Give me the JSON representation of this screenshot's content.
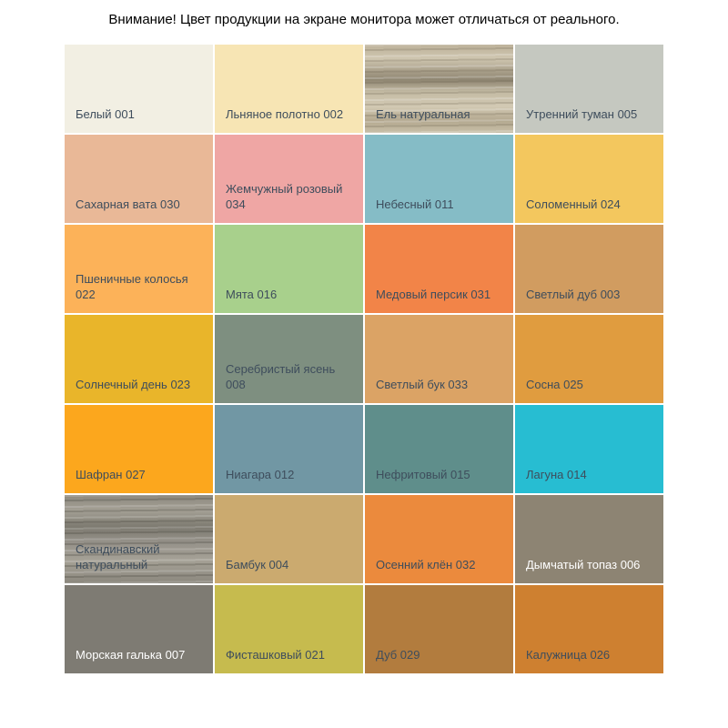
{
  "title": "Внимание! Цвет продукции на экране монитора может отличаться от реального.",
  "label_text_color": "#3e4d5c",
  "swatches": [
    {
      "label": "Белый 001",
      "color": "#f2efe3"
    },
    {
      "label": "Льняное полотно 002",
      "color": "#f7e5b4"
    },
    {
      "label": "Ель натуральная",
      "color": "#c9bfa8",
      "texture": "wood-spruce"
    },
    {
      "label": "Утренний туман 005",
      "color": "#c5c8c0"
    },
    {
      "label": "Сахарная вата 030",
      "color": "#e9b897"
    },
    {
      "label": "Жемчужный розовый 034",
      "color": "#efa6a4"
    },
    {
      "label": "Небесный 011",
      "color": "#85bcc6"
    },
    {
      "label": "Соломенный 024",
      "color": "#f3c75e"
    },
    {
      "label": "Пшеничные колосья 022",
      "color": "#fcb259"
    },
    {
      "label": "Мята 016",
      "color": "#a8d08c"
    },
    {
      "label": "Медовый персик 031",
      "color": "#f28448"
    },
    {
      "label": "Светлый дуб 003",
      "color": "#d19c60"
    },
    {
      "label": "Солнечный день 023",
      "color": "#e9b52a"
    },
    {
      "label": "Серебристый ясень 008",
      "color": "#7e8f80"
    },
    {
      "label": "Светлый бук 033",
      "color": "#dba365"
    },
    {
      "label": "Сосна 025",
      "color": "#e09c3f"
    },
    {
      "label": "Шафран 027",
      "color": "#fca71d"
    },
    {
      "label": "Ниагара 012",
      "color": "#7197a4"
    },
    {
      "label": "Нефритовый 015",
      "color": "#5f8e8b"
    },
    {
      "label": "Лагуна 014",
      "color": "#27bdd2"
    },
    {
      "label": "Скандинавский натуральный",
      "color": "#9b978d",
      "texture": "wood-gray"
    },
    {
      "label": "Бамбук 004",
      "color": "#cbaa6f"
    },
    {
      "label": "Осенний клён 032",
      "color": "#eb8a3d"
    },
    {
      "label": "Дымчатый топаз 006",
      "color": "#8d8473",
      "text_color": "#ffffff"
    },
    {
      "label": "Морская галька 007",
      "color": "#7e7b73",
      "text_color": "#ffffff"
    },
    {
      "label": "Фисташковый 021",
      "color": "#c6bb4e"
    },
    {
      "label": "Дуб 029",
      "color": "#b27c3e"
    },
    {
      "label": "Калужница 026",
      "color": "#ce8030"
    }
  ],
  "chart_data": {
    "type": "table",
    "title": "Внимание! Цвет продукции на экране монитора может отличаться от реального.",
    "columns": [
      "name",
      "hex"
    ],
    "rows": [
      [
        "Белый 001",
        "#f2efe3"
      ],
      [
        "Льняное полотно 002",
        "#f7e5b4"
      ],
      [
        "Ель натуральная",
        "#c9bfa8"
      ],
      [
        "Утренний туман 005",
        "#c5c8c0"
      ],
      [
        "Сахарная вата 030",
        "#e9b897"
      ],
      [
        "Жемчужный розовый 034",
        "#efa6a4"
      ],
      [
        "Небесный 011",
        "#85bcc6"
      ],
      [
        "Соломенный 024",
        "#f3c75e"
      ],
      [
        "Пшеничные колосья 022",
        "#fcb259"
      ],
      [
        "Мята 016",
        "#a8d08c"
      ],
      [
        "Медовый персик 031",
        "#f28448"
      ],
      [
        "Светлый дуб 003",
        "#d19c60"
      ],
      [
        "Солнечный день 023",
        "#e9b52a"
      ],
      [
        "Серебристый ясень 008",
        "#7e8f80"
      ],
      [
        "Светлый бук 033",
        "#dba365"
      ],
      [
        "Сосна 025",
        "#e09c3f"
      ],
      [
        "Шафран 027",
        "#fca71d"
      ],
      [
        "Ниагара 012",
        "#7197a4"
      ],
      [
        "Нефритовый 015",
        "#5f8e8b"
      ],
      [
        "Лагуна 014",
        "#27bdd2"
      ],
      [
        "Скандинавский натуральный",
        "#9b978d"
      ],
      [
        "Бамбук 004",
        "#cbaa6f"
      ],
      [
        "Осенний клён 032",
        "#eb8a3d"
      ],
      [
        "Дымчатый топаз 006",
        "#8d8473"
      ],
      [
        "Морская галька 007",
        "#7e7b73"
      ],
      [
        "Фисташковый 021",
        "#c6bb4e"
      ],
      [
        "Дуб 029",
        "#b27c3e"
      ],
      [
        "Калужница 026",
        "#ce8030"
      ]
    ],
    "layout": "grid 7 rows x 4 columns, label bottom-left of each swatch"
  }
}
